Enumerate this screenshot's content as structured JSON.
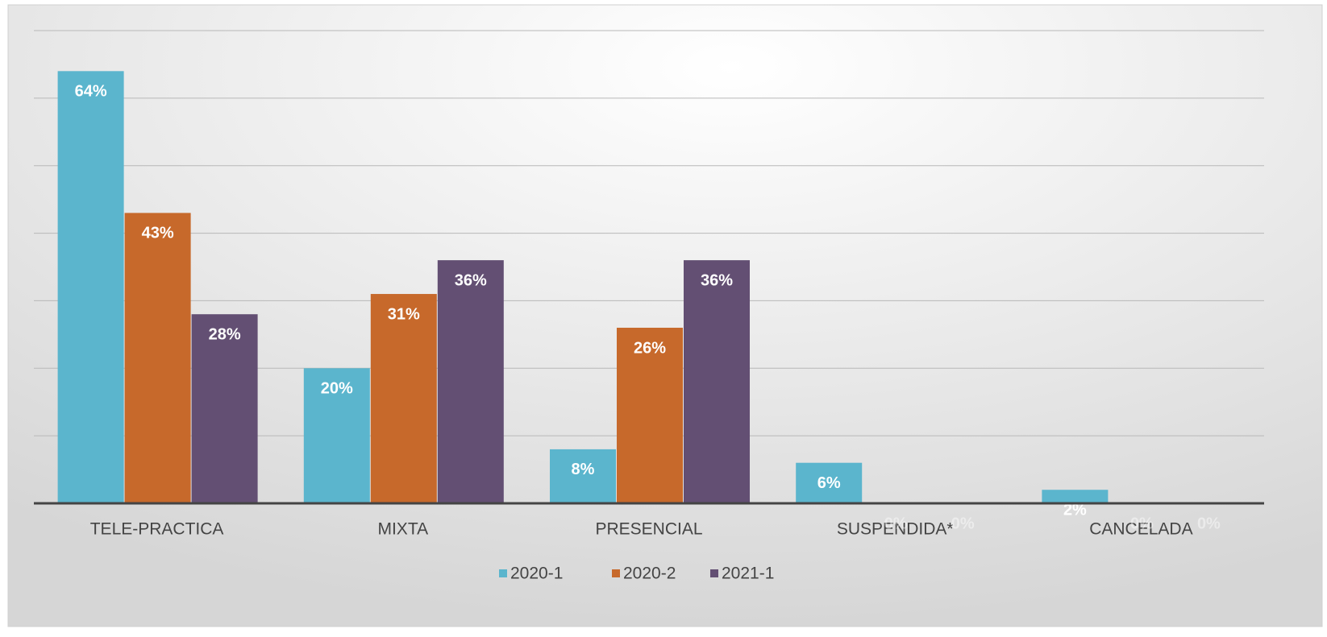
{
  "chart_data": {
    "type": "bar",
    "categories": [
      "TELE-PRACTICA",
      "MIXTA",
      "PRESENCIAL",
      "SUSPENDIDA*",
      "CANCELADA"
    ],
    "series": [
      {
        "name": "2020-1",
        "color": "#5bb5cd",
        "values": [
          64,
          20,
          8,
          6,
          2
        ],
        "value_labels": [
          "64%",
          "20%",
          "8%",
          "6%",
          "2%"
        ]
      },
      {
        "name": "2020-2",
        "color": "#c7692b",
        "values": [
          43,
          31,
          26,
          0,
          0
        ],
        "value_labels": [
          "43%",
          "31%",
          "26%",
          "0%",
          "0%"
        ]
      },
      {
        "name": "2021-1",
        "color": "#634f73",
        "values": [
          28,
          36,
          36,
          0,
          0
        ],
        "value_labels": [
          "28%",
          "36%",
          "36%",
          "0%",
          "0%"
        ]
      }
    ],
    "ylim": [
      0,
      70
    ],
    "yticks": [
      0,
      10,
      20,
      30,
      40,
      50,
      60,
      70
    ],
    "grid": true,
    "legend": "bottom"
  }
}
